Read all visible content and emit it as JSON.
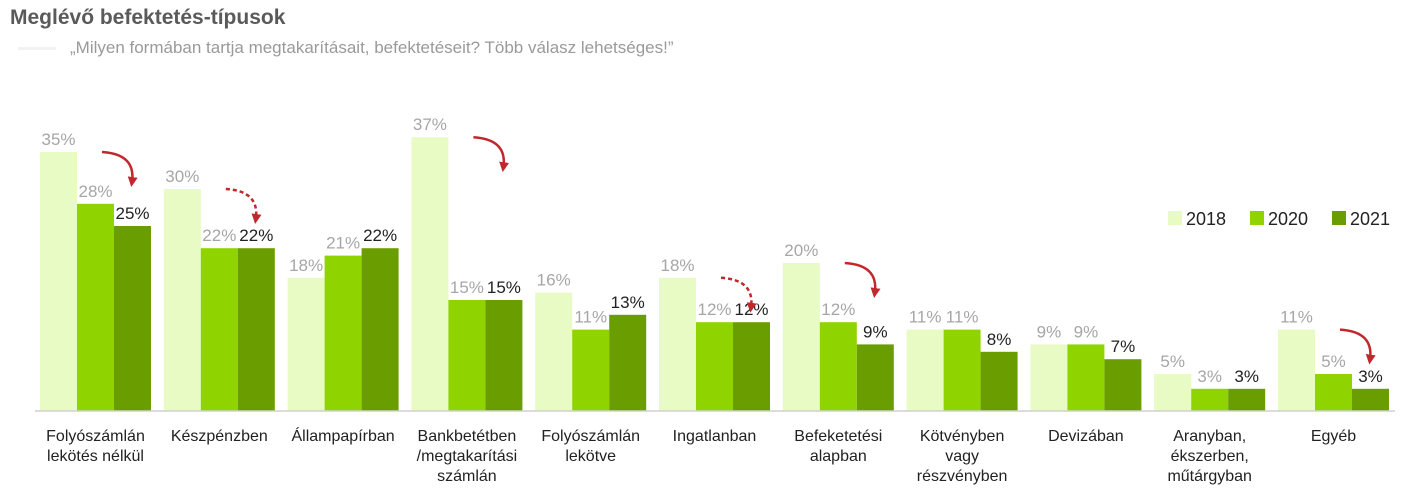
{
  "header": {
    "title": "Meglévő befektetés-típusok",
    "subtitle": "„Milyen formában tartja megtakarításait, befektetéseit? Több válasz lehetséges!”"
  },
  "colors": {
    "s2018": "#e8fbc4",
    "s2020": "#8fd400",
    "s2021": "#6a9e00",
    "label2018": "#a6a6a6",
    "label2020": "#a6a6a6",
    "label2021": "#222222",
    "arrow": "#c0282d",
    "axis": "#d0d0d0"
  },
  "chart_data": {
    "type": "bar",
    "title": "Meglévő befektetés-típusok",
    "categories": [
      [
        "Folyószámlán",
        "lekötés nélkül"
      ],
      [
        "Készpénzben"
      ],
      [
        "Állampapírban"
      ],
      [
        "Bankbetétben",
        "/megtakarítási",
        "számlán"
      ],
      [
        "Folyószámlán",
        "lekötve"
      ],
      [
        "Ingatlanban"
      ],
      [
        "Befeketetési",
        "alapban"
      ],
      [
        "Kötvényben",
        "vagy",
        "részvényben"
      ],
      [
        "Devizában"
      ],
      [
        "Aranyban,",
        "ékszerben,",
        "műtárgyban"
      ],
      [
        "Egyéb"
      ]
    ],
    "series": [
      {
        "name": "2018",
        "values": [
          35,
          30,
          18,
          37,
          16,
          18,
          20,
          11,
          9,
          5,
          11
        ],
        "labels": [
          "35%",
          "30%",
          "18%",
          "37%",
          "16%",
          "18%",
          "20%",
          "11%",
          "9%",
          "5%",
          "11%"
        ]
      },
      {
        "name": "2020",
        "values": [
          28,
          22,
          21,
          15,
          11,
          12,
          12,
          11,
          9,
          3,
          5
        ],
        "labels": [
          "28%",
          "22%",
          "21%",
          "15%",
          "11%",
          "12%",
          "12%",
          "11%",
          "9%",
          "3%",
          "5%"
        ]
      },
      {
        "name": "2021",
        "values": [
          25,
          22,
          22,
          15,
          13,
          12,
          9,
          8,
          7,
          3,
          3
        ],
        "labels": [
          "25%",
          "22%",
          "22%",
          "15%",
          "13%",
          "12%",
          "9%",
          "8%",
          "7%",
          "3%",
          "3%"
        ]
      }
    ],
    "ylim": [
      0,
      37
    ],
    "legend": {
      "placement": "right",
      "entries": [
        "2018",
        "2020",
        "2021"
      ]
    },
    "arrows": [
      {
        "category": 0,
        "style": "solid"
      },
      {
        "category": 1,
        "style": "dashed"
      },
      {
        "category": 3,
        "style": "solid"
      },
      {
        "category": 5,
        "style": "dashed"
      },
      {
        "category": 6,
        "style": "solid"
      },
      {
        "category": 10,
        "style": "solid"
      }
    ]
  }
}
